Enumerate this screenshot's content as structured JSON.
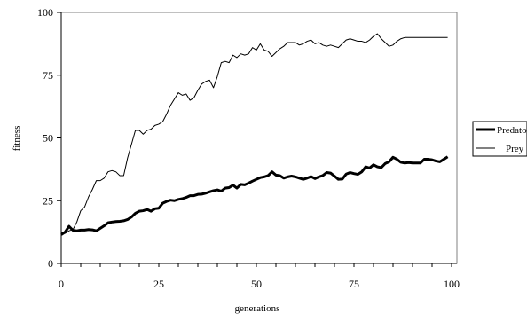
{
  "chart_data": {
    "type": "line",
    "title": "",
    "xlabel": "generations",
    "ylabel": "fitness",
    "xlim": [
      0,
      100
    ],
    "ylim": [
      0,
      100
    ],
    "x_ticks": [
      0,
      25,
      50,
      75,
      100
    ],
    "y_ticks": [
      0,
      25,
      50,
      75,
      100
    ],
    "grid": false,
    "legend_position": "right",
    "series": [
      {
        "name": "Predator",
        "color": "#000000",
        "style": "thick",
        "x": [
          0,
          1,
          2,
          3,
          4,
          5,
          6,
          7,
          8,
          9,
          10,
          11,
          12,
          13,
          14,
          15,
          16,
          17,
          18,
          19,
          20,
          21,
          22,
          23,
          24,
          25,
          26,
          27,
          28,
          29,
          30,
          31,
          32,
          33,
          34,
          35,
          36,
          37,
          38,
          39,
          40,
          41,
          42,
          43,
          44,
          45,
          46,
          47,
          48,
          49,
          50,
          51,
          52,
          53,
          54,
          55,
          56,
          57,
          58,
          59,
          60,
          61,
          62,
          63,
          64,
          65,
          66,
          67,
          68,
          69,
          70,
          71,
          72,
          73,
          74,
          75,
          76,
          77,
          78,
          79,
          80,
          81,
          82,
          83,
          84,
          85,
          86,
          87,
          88,
          89,
          90,
          91,
          92,
          93,
          94,
          95,
          96,
          97,
          98,
          99
        ],
        "values": [
          11.5,
          12.5,
          14.8,
          13.2,
          13.0,
          13.3,
          13.3,
          13.5,
          13.4,
          13.0,
          14.0,
          15.0,
          16.2,
          16.5,
          16.7,
          16.8,
          17.0,
          17.5,
          18.5,
          20.0,
          20.8,
          21.0,
          21.5,
          20.8,
          21.8,
          22.0,
          24.0,
          24.7,
          25.2,
          25.0,
          25.5,
          25.8,
          26.3,
          27.0,
          27.0,
          27.5,
          27.6,
          28.0,
          28.5,
          29.0,
          29.3,
          28.8,
          30.0,
          30.2,
          31.2,
          30.0,
          31.5,
          31.3,
          32.0,
          32.8,
          33.5,
          34.2,
          34.5,
          35.0,
          36.5,
          35.2,
          35.0,
          34.0,
          34.5,
          34.8,
          34.5,
          34.0,
          33.5,
          34.0,
          34.6,
          33.8,
          34.5,
          35.0,
          36.2,
          36.0,
          34.8,
          33.5,
          33.6,
          35.6,
          36.2,
          35.8,
          35.5,
          36.5,
          38.5,
          38.0,
          39.3,
          38.5,
          38.2,
          39.8,
          40.5,
          42.3,
          41.5,
          40.3,
          40.0,
          40.2,
          40.0,
          40.0,
          40.0,
          41.5,
          41.5,
          41.3,
          40.8,
          40.5,
          41.5,
          42.5
        ]
      },
      {
        "name": "Prey",
        "color": "#000000",
        "style": "thin",
        "x": [
          0,
          1,
          2,
          3,
          4,
          5,
          6,
          7,
          8,
          9,
          10,
          11,
          12,
          13,
          14,
          15,
          16,
          17,
          18,
          19,
          20,
          21,
          22,
          23,
          24,
          25,
          26,
          27,
          28,
          29,
          30,
          31,
          32,
          33,
          34,
          35,
          36,
          37,
          38,
          39,
          40,
          41,
          42,
          43,
          44,
          45,
          46,
          47,
          48,
          49,
          50,
          51,
          52,
          53,
          54,
          55,
          56,
          57,
          58,
          59,
          60,
          61,
          62,
          63,
          64,
          65,
          66,
          67,
          68,
          69,
          70,
          71,
          72,
          73,
          74,
          75,
          76,
          77,
          78,
          79,
          80,
          81,
          82,
          83,
          84,
          85,
          86,
          87,
          88,
          89,
          90,
          91,
          92,
          93,
          94,
          95,
          96,
          97,
          98,
          99
        ],
        "values": [
          12.5,
          12.0,
          13.0,
          13.5,
          16.5,
          21.0,
          22.5,
          26.5,
          29.5,
          33.0,
          33.0,
          34.0,
          36.5,
          37.0,
          36.5,
          35.0,
          35.0,
          42.0,
          47.5,
          53.0,
          53.0,
          51.5,
          53.0,
          53.5,
          55.0,
          55.5,
          56.5,
          59.5,
          63.0,
          65.5,
          68.0,
          67.0,
          67.5,
          65.0,
          66.0,
          69.0,
          71.5,
          72.5,
          73.0,
          70.0,
          74.5,
          80.0,
          80.5,
          80.0,
          83.0,
          82.0,
          83.5,
          83.0,
          83.5,
          86.0,
          85.0,
          87.5,
          85.0,
          84.5,
          82.5,
          84.0,
          85.5,
          86.5,
          88.0,
          88.0,
          88.0,
          87.0,
          87.5,
          88.5,
          89.0,
          87.5,
          88.0,
          87.0,
          86.5,
          87.0,
          86.5,
          86.0,
          87.5,
          89.0,
          89.5,
          89.0,
          88.5,
          88.5,
          88.0,
          89.0,
          90.5,
          91.5,
          89.5,
          88.0,
          86.5,
          87.0,
          88.5,
          89.5,
          90.0,
          90.0,
          90.0,
          90.0,
          90.0,
          90.0,
          90.0,
          90.0,
          90.0,
          90.0,
          90.0,
          90.0
        ]
      }
    ]
  }
}
